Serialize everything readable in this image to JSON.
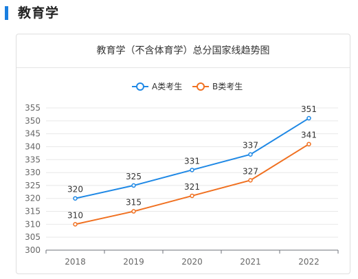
{
  "section": {
    "title": "教育学"
  },
  "chart_title": "教育学（不含体育学）总分国家线趋势图",
  "chart_data": {
    "type": "line",
    "title": "教育学（不含体育学）总分国家线趋势图",
    "categories": [
      "2018",
      "2019",
      "2020",
      "2021",
      "2022"
    ],
    "series": [
      {
        "name": "A类考生",
        "color": "#1e88e5",
        "values": [
          320,
          325,
          331,
          337,
          351
        ]
      },
      {
        "name": "B类考生",
        "color": "#f07020",
        "values": [
          310,
          315,
          321,
          327,
          341
        ]
      }
    ],
    "ylim": [
      300,
      355
    ],
    "yticks": [
      300,
      305,
      310,
      315,
      320,
      325,
      330,
      335,
      340,
      345,
      350,
      355
    ],
    "grid": true,
    "legend": "top-center",
    "xlabel": "",
    "ylabel": ""
  }
}
